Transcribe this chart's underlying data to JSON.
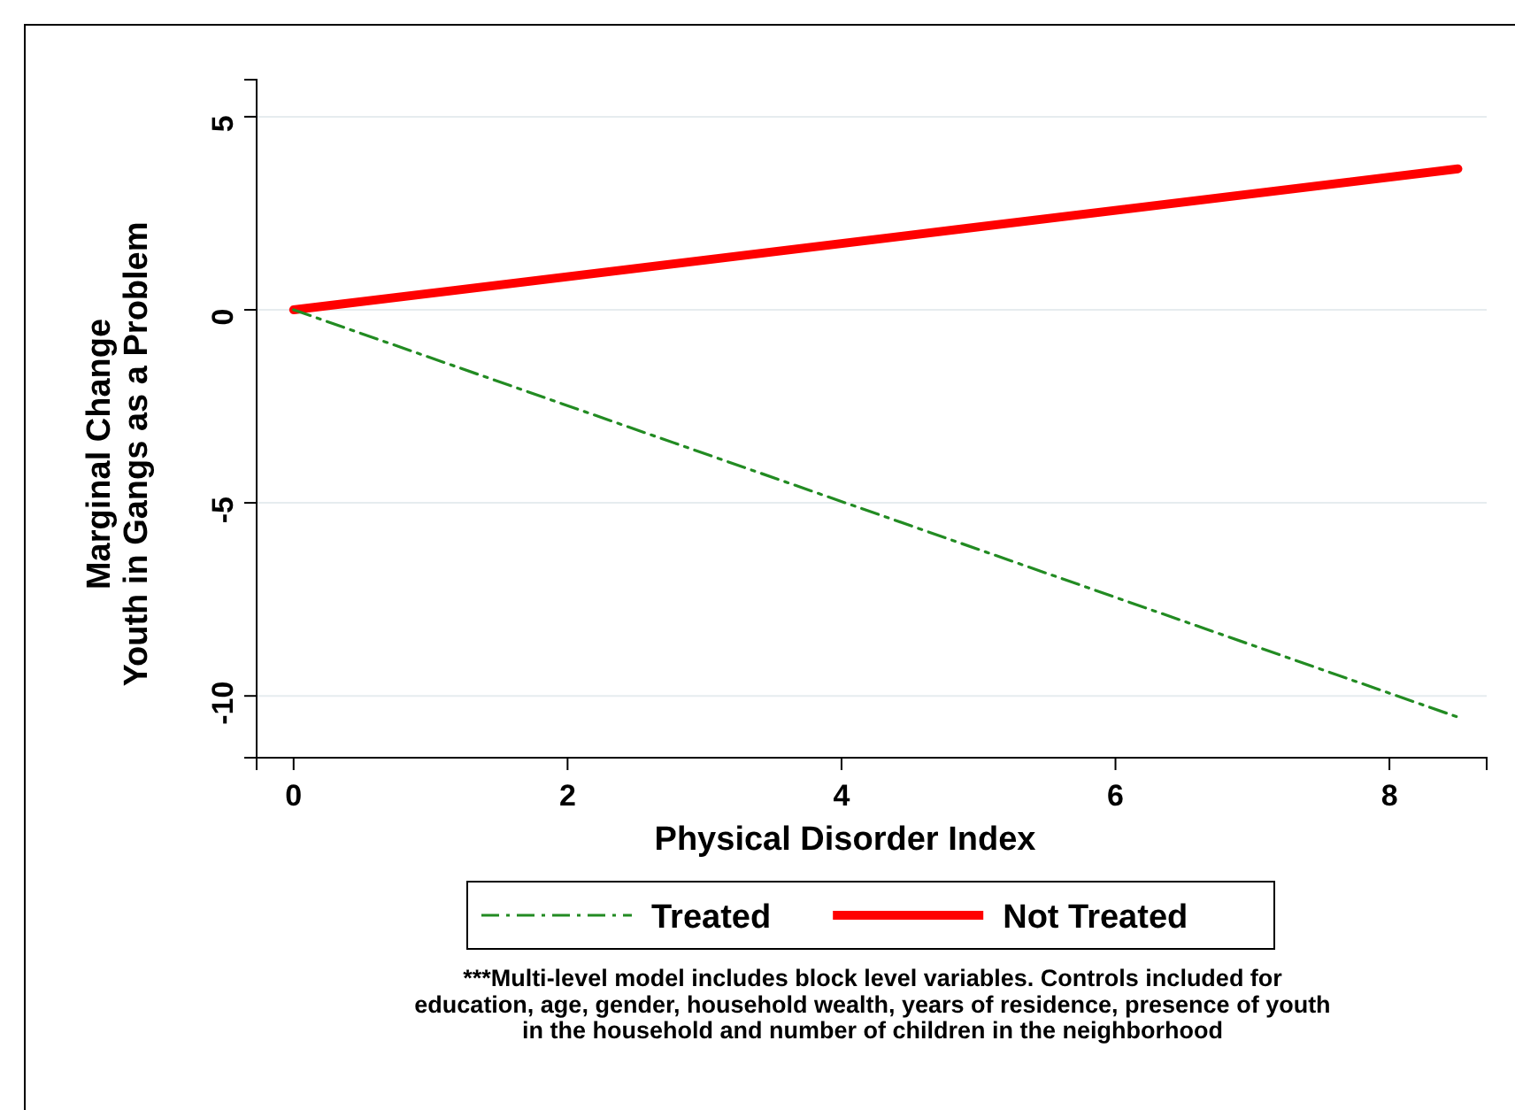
{
  "chart_data": {
    "type": "line",
    "xlabel": "Physical Disorder Index",
    "ylabel": "Marginal Change\nYouth in Gangs as a Problem",
    "xlim": [
      -0.27,
      8.71
    ],
    "xticks": [
      0,
      2,
      4,
      6,
      8
    ],
    "ylim": [
      -11.6,
      5.96
    ],
    "yticks": [
      5,
      0,
      -5,
      -10
    ],
    "x": [
      0,
      8.5
    ],
    "grid": "y",
    "legend": "bottom",
    "series": [
      {
        "name": "Treated",
        "color": "#228b22",
        "line_style": "dashed",
        "values": [
          0,
          -10.55
        ]
      },
      {
        "name": "Not Treated",
        "color": "#ff0000",
        "line_style": "solid",
        "values": [
          0,
          3.65
        ]
      }
    ],
    "annotations": [
      "***Multi-level model includes block level variables.  Controls included for\neducation, age, gender, household wealth, years of residence, presence of youth\nin the household and number of children in the neighborhood"
    ]
  }
}
